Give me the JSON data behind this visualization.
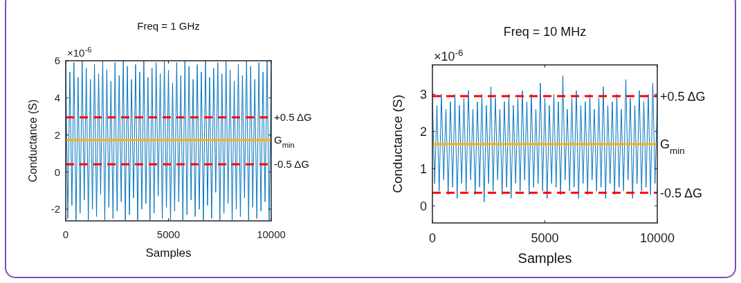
{
  "chart_data": [
    {
      "type": "line",
      "title": "Freq = 1 GHz",
      "xlabel": "Samples",
      "ylabel": "Conductance (S)",
      "annotations": [
        "×10$^{-6}$"
      ],
      "xlim": [
        0,
        10000
      ],
      "xticks": [
        0,
        5000,
        10000
      ],
      "ylim": [
        -2.63,
        6
      ],
      "yticks": [
        -2,
        0,
        2,
        4,
        6
      ],
      "grid": false,
      "line_style": "solid",
      "x": [
        0,
        100,
        200,
        300,
        400,
        500,
        600,
        700,
        800,
        900,
        1000,
        1100,
        1200,
        1300,
        1400,
        1500,
        1600,
        1700,
        1800,
        1900,
        2000,
        2100,
        2200,
        2300,
        2400,
        2500,
        2600,
        2700,
        2800,
        2900,
        3000,
        3100,
        3200,
        3300,
        3400,
        3500,
        3600,
        3700,
        3800,
        3900,
        4000,
        4100,
        4200,
        4300,
        4400,
        4500,
        4600,
        4700,
        4800,
        4900,
        5000,
        5100,
        5200,
        5300,
        5400,
        5500,
        5600,
        5700,
        5800,
        5900,
        6000,
        6100,
        6200,
        6300,
        6400,
        6500,
        6600,
        6700,
        6800,
        6900,
        7000,
        7100,
        7200,
        7300,
        7400,
        7500,
        7600,
        7700,
        7800,
        7900,
        8000,
        8100,
        8200,
        8300,
        8400,
        8500,
        8600,
        8700,
        8800,
        8900,
        9000,
        9100,
        9200,
        9300,
        9400,
        9500,
        9600,
        9700,
        9800,
        9900,
        10000
      ],
      "series": [
        {
          "color": "#0072bd",
          "values": [
            6.0,
            -2.5,
            5.4,
            -1.8,
            5.9,
            -2.6,
            5.1,
            -2.2,
            6.0,
            -1.5,
            5.6,
            -2.6,
            5.0,
            -2.0,
            5.8,
            -2.4,
            5.3,
            -1.2,
            6.0,
            -2.6,
            5.5,
            -1.9,
            4.9,
            -2.5,
            5.9,
            -2.1,
            5.2,
            -1.6,
            6.0,
            -2.6,
            5.7,
            -2.3,
            5.0,
            -1.4,
            5.8,
            -2.6,
            5.4,
            -2.0,
            6.0,
            -1.7,
            5.1,
            -2.6,
            5.6,
            -2.2,
            5.9,
            -1.3,
            5.3,
            -2.5,
            6.0,
            -1.9,
            5.5,
            -2.6,
            4.8,
            -2.1,
            5.9,
            -1.6,
            5.2,
            -2.6,
            6.0,
            -2.3,
            5.7,
            -1.5,
            5.0,
            -2.4,
            5.8,
            -2.0,
            5.4,
            -2.6,
            6.0,
            -1.8,
            5.1,
            -2.5,
            5.6,
            -1.1,
            5.9,
            -2.6,
            5.3,
            -2.2,
            6.0,
            -1.7,
            5.5,
            -2.6,
            4.9,
            -2.0,
            5.8,
            -2.4,
            5.2,
            -1.4,
            6.0,
            -2.6,
            5.7,
            -1.9,
            5.0,
            -2.5,
            5.9,
            -2.1,
            5.4,
            -1.6,
            6.0,
            -2.6,
            5.5
          ]
        }
      ],
      "ref_lines": [
        {
          "axis": "y",
          "value": 2.95,
          "label": "+0.5  ΔG",
          "color": "#ff0000",
          "line_style": "dashed"
        },
        {
          "axis": "y",
          "value": 1.73,
          "label": "G$_{min}$",
          "color": "#ffb000",
          "line_style": "solid"
        },
        {
          "axis": "y",
          "value": 0.42,
          "label": "-0.5  ΔG",
          "color": "#ff0000",
          "line_style": "dashed"
        }
      ]
    },
    {
      "type": "line",
      "title": "Freq = 10 MHz",
      "xlabel": "Samples",
      "ylabel": "Conductance (S)",
      "annotations": [
        "×10$^{-6}$"
      ],
      "xlim": [
        0,
        10000
      ],
      "xticks": [
        0,
        5000,
        10000
      ],
      "ylim": [
        -0.46,
        3.79
      ],
      "yticks": [
        0,
        1,
        2,
        3
      ],
      "grid": false,
      "line_style": "solid",
      "x": [
        0,
        100,
        200,
        300,
        400,
        500,
        600,
        700,
        800,
        900,
        1000,
        1100,
        1200,
        1300,
        1400,
        1500,
        1600,
        1700,
        1800,
        1900,
        2000,
        2100,
        2200,
        2300,
        2400,
        2500,
        2600,
        2700,
        2800,
        2900,
        3000,
        3100,
        3200,
        3300,
        3400,
        3500,
        3600,
        3700,
        3800,
        3900,
        4000,
        4100,
        4200,
        4300,
        4400,
        4500,
        4600,
        4700,
        4800,
        4900,
        5000,
        5100,
        5200,
        5300,
        5400,
        5500,
        5600,
        5700,
        5800,
        5900,
        6000,
        6100,
        6200,
        6300,
        6400,
        6500,
        6600,
        6700,
        6800,
        6900,
        7000,
        7100,
        7200,
        7300,
        7400,
        7500,
        7600,
        7700,
        7800,
        7900,
        8000,
        8100,
        8200,
        8300,
        8400,
        8500,
        8600,
        8700,
        8800,
        8900,
        9000,
        9100,
        9200,
        9300,
        9400,
        9500,
        9600,
        9700,
        9800,
        9900,
        10000
      ],
      "series": [
        {
          "color": "#0072bd",
          "values": [
            2.9,
            0.6,
            2.7,
            0.4,
            3.0,
            0.7,
            2.6,
            0.3,
            2.8,
            0.5,
            3.0,
            0.2,
            2.7,
            0.6,
            2.9,
            0.4,
            3.1,
            0.7,
            2.6,
            0.3,
            2.8,
            0.5,
            3.0,
            0.1,
            2.7,
            0.6,
            3.2,
            0.4,
            2.9,
            0.7,
            2.6,
            0.3,
            2.8,
            0.5,
            3.0,
            0.2,
            2.7,
            0.6,
            2.9,
            0.4,
            3.1,
            0.7,
            2.8,
            0.3,
            3.0,
            0.5,
            2.6,
            0.6,
            3.3,
            0.4,
            2.9,
            0.2,
            2.7,
            0.6,
            3.0,
            0.5,
            2.8,
            0.3,
            3.5,
            0.7,
            2.6,
            0.4,
            2.9,
            0.5,
            3.1,
            0.2,
            2.7,
            0.6,
            2.8,
            0.3,
            3.0,
            0.7,
            2.6,
            0.4,
            2.9,
            0.5,
            3.2,
            0.2,
            2.7,
            0.6,
            2.8,
            0.3,
            3.0,
            0.5,
            2.6,
            0.4,
            3.4,
            0.7,
            2.9,
            0.2,
            2.7,
            0.6,
            3.1,
            0.4,
            2.8,
            0.5,
            3.0,
            0.3,
            3.3,
            0.6,
            2.9
          ]
        }
      ],
      "ref_lines": [
        {
          "axis": "y",
          "value": 2.95,
          "label": "+0.5  ΔG",
          "color": "#ff0000",
          "line_style": "dashed"
        },
        {
          "axis": "y",
          "value": 1.66,
          "label": "G$_{min}$",
          "color": "#ffb000",
          "line_style": "solid"
        },
        {
          "axis": "y",
          "value": 0.35,
          "label": "-0.5 ΔG",
          "color": "#ff0000",
          "line_style": "dashed"
        }
      ]
    }
  ]
}
